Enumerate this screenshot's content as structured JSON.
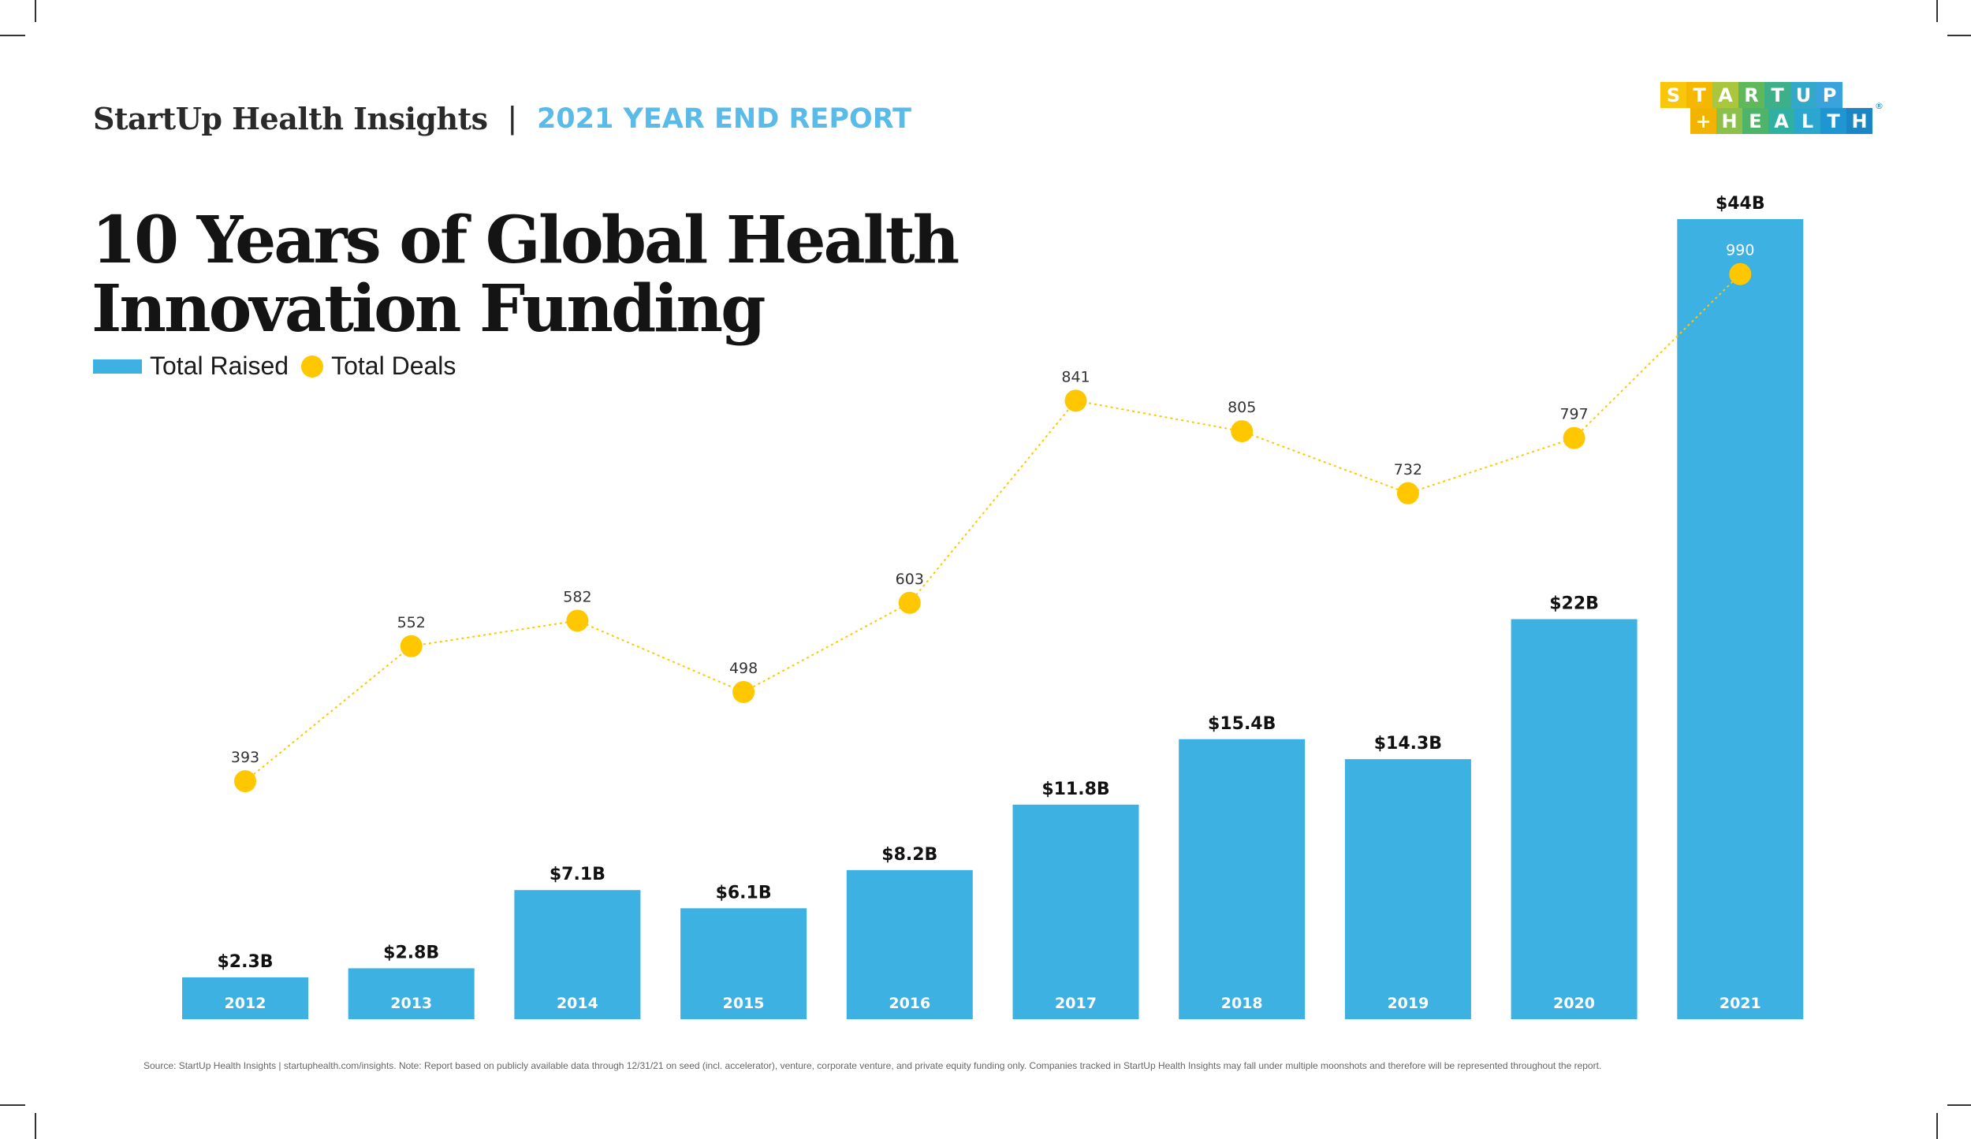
{
  "header": {
    "brand": "StartUp Health Insights",
    "separator": "|",
    "report": "2021 YEAR END REPORT"
  },
  "title": {
    "line1": "10 Years of Global Health",
    "line2": "Innovation Funding"
  },
  "legend": {
    "bar_label": "Total Raised",
    "dot_label": "Total Deals"
  },
  "logo": {
    "top_letters": [
      "S",
      "T",
      "A",
      "R",
      "T",
      "U",
      "P"
    ],
    "bottom_letters": [
      "+",
      "H",
      "E",
      "A",
      "L",
      "T",
      "H"
    ],
    "registered": "®"
  },
  "colors": {
    "bar": "#3db1e2",
    "dot": "#ffc700",
    "accent": "#5bbbe8",
    "logo_top": [
      "#f9c60b",
      "#f5b700",
      "#a9c63c",
      "#5fb85a",
      "#3db08a",
      "#34a8c8",
      "#3aa2dc"
    ],
    "logo_bottom": [
      "#f2b400",
      "#8dc04a",
      "#4db46a",
      "#2fb0a0",
      "#2aa6cf",
      "#1f95d2",
      "#1a86c5"
    ]
  },
  "chart_data": {
    "type": "bar",
    "title": "10 Years of Global Health Innovation Funding",
    "categories": [
      "2012",
      "2013",
      "2014",
      "2015",
      "2016",
      "2017",
      "2018",
      "2019",
      "2020",
      "2021"
    ],
    "series": [
      {
        "name": "Total Raised",
        "kind": "bar",
        "unit": "$B",
        "values": [
          2.3,
          2.8,
          7.1,
          6.1,
          8.2,
          11.8,
          15.4,
          14.3,
          22,
          44
        ],
        "labels": [
          "$2.3B",
          "$2.8B",
          "$7.1B",
          "$6.1B",
          "$8.2B",
          "$11.8B",
          "$15.4B",
          "$14.3B",
          "$22B",
          "$44B"
        ]
      },
      {
        "name": "Total Deals",
        "kind": "line",
        "values": [
          393,
          552,
          582,
          498,
          603,
          841,
          805,
          732,
          797,
          990
        ],
        "labels": [
          "393",
          "552",
          "582",
          "498",
          "603",
          "841",
          "805",
          "732",
          "797",
          "990"
        ]
      }
    ],
    "xlabel": "",
    "ylabel": "",
    "ylim_bars": [
      0,
      44
    ],
    "ylim_deals": [
      0,
      990
    ],
    "grid": false,
    "legend_position": "top-left"
  },
  "footer": {
    "source": "Source: StartUp Health Insights | startuphealth.com/insights. Note: Report based on publicly available data through 12/31/21 on seed (incl. accelerator), venture, corporate venture, and private equity funding only. Companies tracked in StartUp Health Insights may fall under multiple moonshots and therefore will be represented throughout the report."
  }
}
